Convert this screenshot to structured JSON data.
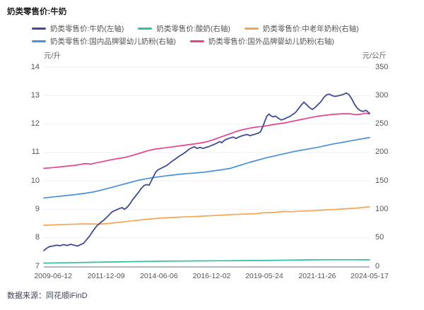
{
  "header": {
    "title": "奶类零售价:牛奶"
  },
  "footer": {
    "source": "数据来源：同花顺iFinD"
  },
  "chart_data": {
    "type": "line",
    "title": "奶类零售价:牛奶",
    "grid": true,
    "legend_position": "top",
    "left_axis": {
      "unit": "元/升",
      "min": 7,
      "max": 14,
      "ticks": [
        14,
        13,
        12,
        11,
        10,
        9,
        8,
        7
      ]
    },
    "right_axis": {
      "unit": "元/公斤",
      "min": 0,
      "max": 350,
      "ticks": [
        350,
        300,
        250,
        200,
        150,
        100,
        50,
        0
      ]
    },
    "x_axis": {
      "range": [
        2009.0,
        2024.37
      ],
      "tick_years": [
        2009.44,
        2011.94,
        2014.43,
        2016.92,
        2019.4,
        2021.9,
        2024.37
      ],
      "tick_labels": [
        "2009-06-12",
        "2011-12-09",
        "2014-06-06",
        "2016-12-02",
        "2019-05-24",
        "2021-11-26",
        "2024-05-17"
      ]
    },
    "legend_rows": [
      [
        0,
        1,
        2
      ],
      [
        3,
        4
      ]
    ],
    "draw_order": [
      1,
      2,
      3,
      4,
      0
    ],
    "series": [
      {
        "key": "milk",
        "name": "奶类零售价:牛奶(左轴)",
        "axis": "left",
        "unit": "元/升",
        "color": "#3f4b96",
        "points": [
          [
            2009.0,
            7.55
          ],
          [
            2009.13,
            7.63
          ],
          [
            2009.27,
            7.69
          ],
          [
            2009.43,
            7.71
          ],
          [
            2009.6,
            7.74
          ],
          [
            2009.77,
            7.72
          ],
          [
            2009.93,
            7.76
          ],
          [
            2010.1,
            7.73
          ],
          [
            2010.27,
            7.77
          ],
          [
            2010.43,
            7.74
          ],
          [
            2010.6,
            7.71
          ],
          [
            2010.73,
            7.76
          ],
          [
            2010.87,
            7.8
          ],
          [
            2011.0,
            7.92
          ],
          [
            2011.17,
            8.07
          ],
          [
            2011.33,
            8.25
          ],
          [
            2011.5,
            8.42
          ],
          [
            2011.67,
            8.53
          ],
          [
            2011.83,
            8.62
          ],
          [
            2012.0,
            8.74
          ],
          [
            2012.17,
            8.88
          ],
          [
            2012.3,
            8.94
          ],
          [
            2012.43,
            8.98
          ],
          [
            2012.57,
            9.03
          ],
          [
            2012.7,
            9.06
          ],
          [
            2012.8,
            9.0
          ],
          [
            2012.93,
            9.07
          ],
          [
            2013.07,
            9.2
          ],
          [
            2013.2,
            9.35
          ],
          [
            2013.33,
            9.47
          ],
          [
            2013.47,
            9.6
          ],
          [
            2013.6,
            9.74
          ],
          [
            2013.73,
            9.84
          ],
          [
            2013.87,
            9.87
          ],
          [
            2013.97,
            9.85
          ],
          [
            2014.07,
            10.0
          ],
          [
            2014.17,
            10.15
          ],
          [
            2014.27,
            10.3
          ],
          [
            2014.37,
            10.38
          ],
          [
            2014.5,
            10.43
          ],
          [
            2014.63,
            10.48
          ],
          [
            2014.77,
            10.53
          ],
          [
            2014.9,
            10.6
          ],
          [
            2015.03,
            10.68
          ],
          [
            2015.17,
            10.75
          ],
          [
            2015.3,
            10.82
          ],
          [
            2015.43,
            10.89
          ],
          [
            2015.57,
            10.95
          ],
          [
            2015.7,
            11.02
          ],
          [
            2015.83,
            11.1
          ],
          [
            2015.97,
            11.16
          ],
          [
            2016.1,
            11.2
          ],
          [
            2016.23,
            11.14
          ],
          [
            2016.37,
            11.18
          ],
          [
            2016.5,
            11.14
          ],
          [
            2016.63,
            11.17
          ],
          [
            2016.77,
            11.2
          ],
          [
            2016.9,
            11.24
          ],
          [
            2017.03,
            11.28
          ],
          [
            2017.17,
            11.33
          ],
          [
            2017.3,
            11.38
          ],
          [
            2017.4,
            11.34
          ],
          [
            2017.53,
            11.43
          ],
          [
            2017.67,
            11.48
          ],
          [
            2017.8,
            11.51
          ],
          [
            2017.93,
            11.54
          ],
          [
            2018.07,
            11.49
          ],
          [
            2018.2,
            11.54
          ],
          [
            2018.33,
            11.58
          ],
          [
            2018.47,
            11.61
          ],
          [
            2018.6,
            11.63
          ],
          [
            2018.73,
            11.59
          ],
          [
            2018.87,
            11.62
          ],
          [
            2019.0,
            11.65
          ],
          [
            2019.13,
            11.68
          ],
          [
            2019.23,
            11.73
          ],
          [
            2019.33,
            11.9
          ],
          [
            2019.43,
            12.1
          ],
          [
            2019.53,
            12.28
          ],
          [
            2019.63,
            12.35
          ],
          [
            2019.73,
            12.28
          ],
          [
            2019.83,
            12.25
          ],
          [
            2019.93,
            12.28
          ],
          [
            2020.07,
            12.2
          ],
          [
            2020.2,
            12.14
          ],
          [
            2020.33,
            12.17
          ],
          [
            2020.47,
            12.22
          ],
          [
            2020.6,
            12.26
          ],
          [
            2020.73,
            12.33
          ],
          [
            2020.87,
            12.4
          ],
          [
            2021.0,
            12.52
          ],
          [
            2021.13,
            12.65
          ],
          [
            2021.27,
            12.77
          ],
          [
            2021.4,
            12.68
          ],
          [
            2021.53,
            12.58
          ],
          [
            2021.67,
            12.51
          ],
          [
            2021.8,
            12.58
          ],
          [
            2021.93,
            12.68
          ],
          [
            2022.07,
            12.78
          ],
          [
            2022.2,
            12.92
          ],
          [
            2022.33,
            13.02
          ],
          [
            2022.47,
            13.05
          ],
          [
            2022.6,
            13.0
          ],
          [
            2022.73,
            12.97
          ],
          [
            2022.87,
            12.99
          ],
          [
            2023.0,
            13.01
          ],
          [
            2023.13,
            13.04
          ],
          [
            2023.27,
            13.09
          ],
          [
            2023.4,
            13.03
          ],
          [
            2023.53,
            12.88
          ],
          [
            2023.67,
            12.68
          ],
          [
            2023.8,
            12.55
          ],
          [
            2023.93,
            12.47
          ],
          [
            2024.07,
            12.44
          ],
          [
            2024.2,
            12.48
          ],
          [
            2024.37,
            12.37
          ]
        ]
      },
      {
        "key": "yogurt",
        "name": "奶类零售价:酸奶(右轴)",
        "axis": "right",
        "unit": "元/公斤",
        "color": "#2dc1a2",
        "points": [
          [
            2009.0,
            5.5
          ],
          [
            2009.8,
            5.9
          ],
          [
            2010.6,
            6.4
          ],
          [
            2011.4,
            6.9
          ],
          [
            2012.2,
            7.4
          ],
          [
            2013.0,
            7.9
          ],
          [
            2013.8,
            8.4
          ],
          [
            2014.6,
            8.8
          ],
          [
            2015.4,
            9.1
          ],
          [
            2016.2,
            9.3
          ],
          [
            2017.0,
            9.5
          ],
          [
            2017.8,
            9.7
          ],
          [
            2018.6,
            9.9
          ],
          [
            2019.4,
            10.1
          ],
          [
            2020.0,
            10.4
          ],
          [
            2020.6,
            10.8
          ],
          [
            2021.2,
            11.1
          ],
          [
            2021.8,
            11.35
          ],
          [
            2022.4,
            11.45
          ],
          [
            2023.0,
            11.45
          ],
          [
            2023.6,
            11.4
          ],
          [
            2024.0,
            11.35
          ],
          [
            2024.37,
            11.35
          ]
        ]
      },
      {
        "key": "middle-aged-elderly-milk-powder",
        "name": "奶类零售价:中老年奶粉(右轴)",
        "axis": "right",
        "unit": "元/公斤",
        "color": "#f6a452",
        "points": [
          [
            2009.0,
            72
          ],
          [
            2009.6,
            72.8
          ],
          [
            2010.2,
            73.6
          ],
          [
            2010.8,
            74.3
          ],
          [
            2011.2,
            74.4
          ],
          [
            2011.6,
            74.0
          ],
          [
            2012.0,
            75.0
          ],
          [
            2012.5,
            77.0
          ],
          [
            2013.0,
            79.0
          ],
          [
            2013.5,
            81.0
          ],
          [
            2014.0,
            83.0
          ],
          [
            2014.5,
            84.5
          ],
          [
            2015.0,
            85.5
          ],
          [
            2015.5,
            86.5
          ],
          [
            2016.0,
            87.3
          ],
          [
            2016.5,
            88.0
          ],
          [
            2017.0,
            89.0
          ],
          [
            2017.5,
            90.0
          ],
          [
            2018.0,
            91.0
          ],
          [
            2018.5,
            91.7
          ],
          [
            2019.0,
            92.3
          ],
          [
            2019.3,
            93.7
          ],
          [
            2019.7,
            94.2
          ],
          [
            2020.0,
            95.0
          ],
          [
            2020.3,
            96.3
          ],
          [
            2020.7,
            95.8
          ],
          [
            2021.0,
            96.5
          ],
          [
            2021.4,
            97.2
          ],
          [
            2021.8,
            97.8
          ],
          [
            2022.2,
            98.8
          ],
          [
            2022.6,
            99.6
          ],
          [
            2023.0,
            100.4
          ],
          [
            2023.4,
            101.3
          ],
          [
            2023.8,
            102.3
          ],
          [
            2024.1,
            103.5
          ],
          [
            2024.37,
            104.5
          ]
        ]
      },
      {
        "key": "domestic-infant-formula",
        "name": "奶类零售价:国内品牌婴幼儿奶粉(右轴)",
        "axis": "right",
        "unit": "元/公斤",
        "color": "#4a90d8",
        "points": [
          [
            2009.0,
            120
          ],
          [
            2009.5,
            122
          ],
          [
            2010.0,
            124
          ],
          [
            2010.5,
            126
          ],
          [
            2011.0,
            128.5
          ],
          [
            2011.4,
            131
          ],
          [
            2011.8,
            134.5
          ],
          [
            2012.2,
            138.5
          ],
          [
            2012.6,
            142.5
          ],
          [
            2013.0,
            146.5
          ],
          [
            2013.4,
            150.5
          ],
          [
            2013.8,
            153.5
          ],
          [
            2014.2,
            156
          ],
          [
            2014.6,
            158
          ],
          [
            2015.0,
            160
          ],
          [
            2015.4,
            161.5
          ],
          [
            2015.8,
            163
          ],
          [
            2016.2,
            164
          ],
          [
            2016.6,
            165.5
          ],
          [
            2017.0,
            167.5
          ],
          [
            2017.4,
            169.5
          ],
          [
            2017.8,
            172
          ],
          [
            2018.1,
            175.5
          ],
          [
            2018.4,
            179
          ],
          [
            2018.7,
            182.5
          ],
          [
            2019.0,
            185.5
          ],
          [
            2019.3,
            188.5
          ],
          [
            2019.6,
            191.5
          ],
          [
            2019.9,
            194
          ],
          [
            2020.2,
            196.5
          ],
          [
            2020.5,
            199
          ],
          [
            2020.8,
            201.5
          ],
          [
            2021.1,
            203.5
          ],
          [
            2021.4,
            205.5
          ],
          [
            2021.7,
            207.5
          ],
          [
            2022.0,
            209.5
          ],
          [
            2022.3,
            212
          ],
          [
            2022.6,
            214.5
          ],
          [
            2022.9,
            216.5
          ],
          [
            2023.2,
            218.5
          ],
          [
            2023.5,
            220.5
          ],
          [
            2023.8,
            222.5
          ],
          [
            2024.1,
            224.5
          ],
          [
            2024.37,
            226
          ]
        ]
      },
      {
        "key": "foreign-infant-formula",
        "name": "奶类零售价:国外品牌婴幼儿奶粉(右轴)",
        "axis": "right",
        "unit": "元/公斤",
        "color": "#e8418c",
        "points": [
          [
            2009.0,
            172
          ],
          [
            2009.5,
            173.5
          ],
          [
            2010.0,
            175.5
          ],
          [
            2010.5,
            177.5
          ],
          [
            2010.8,
            179.5
          ],
          [
            2011.0,
            180.5
          ],
          [
            2011.2,
            179.5
          ],
          [
            2011.5,
            182
          ],
          [
            2011.8,
            184
          ],
          [
            2012.1,
            186.5
          ],
          [
            2012.4,
            188.5
          ],
          [
            2012.8,
            191
          ],
          [
            2013.2,
            195
          ],
          [
            2013.6,
            199.5
          ],
          [
            2013.9,
            203
          ],
          [
            2014.2,
            205.5
          ],
          [
            2014.6,
            207.5
          ],
          [
            2015.0,
            209.5
          ],
          [
            2015.4,
            211.5
          ],
          [
            2015.8,
            213.5
          ],
          [
            2016.2,
            215.5
          ],
          [
            2016.6,
            218
          ],
          [
            2016.9,
            221
          ],
          [
            2017.2,
            225
          ],
          [
            2017.5,
            229
          ],
          [
            2017.8,
            233
          ],
          [
            2018.1,
            237
          ],
          [
            2018.4,
            240
          ],
          [
            2018.7,
            242.5
          ],
          [
            2019.0,
            244.5
          ],
          [
            2019.3,
            245.5
          ],
          [
            2019.6,
            247.5
          ],
          [
            2019.9,
            249.5
          ],
          [
            2020.3,
            251.5
          ],
          [
            2020.7,
            254.5
          ],
          [
            2021.1,
            257.5
          ],
          [
            2021.5,
            260.5
          ],
          [
            2021.9,
            263.5
          ],
          [
            2022.3,
            265.5
          ],
          [
            2022.7,
            267
          ],
          [
            2023.1,
            268
          ],
          [
            2023.45,
            268
          ],
          [
            2023.7,
            266.5
          ],
          [
            2023.95,
            267
          ],
          [
            2024.15,
            269
          ],
          [
            2024.37,
            268
          ]
        ]
      }
    ],
    "colors": {
      "grid": "#edeff4",
      "axis_line": "#b2b6c2",
      "tick_text": "#555555"
    }
  }
}
